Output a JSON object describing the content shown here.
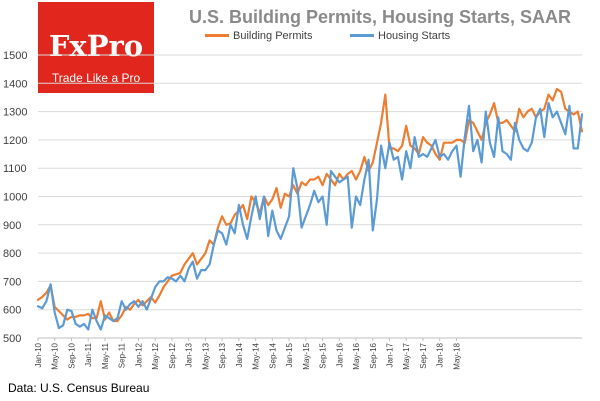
{
  "brand": {
    "name": "FxPro",
    "tagline": "Trade Like a Pro"
  },
  "source_note": "Data: U.S. Census Bureau",
  "colors": {
    "permits": "#ed7d31",
    "starts": "#5b9bd5",
    "grid": "#d9d9d9",
    "brand": "#e0261d"
  },
  "chart_data": {
    "type": "line",
    "title": "U.S. Building Permits, Housing Starts, SAAR",
    "xlabel": "",
    "ylabel": "",
    "ylim": [
      500,
      1500
    ],
    "yticks": [
      500,
      600,
      700,
      800,
      900,
      1000,
      1100,
      1200,
      1300,
      1400,
      1500
    ],
    "grid": true,
    "legend_position": "top",
    "x_tick_labels": [
      "Jan-10",
      "May-10",
      "Sep-10",
      "Jan-11",
      "May-11",
      "Sep-11",
      "Jan-12",
      "May-12",
      "Sep-12",
      "Jan-13",
      "May-13",
      "Sep-13",
      "Jan-14",
      "May-14",
      "Sep-14",
      "Jan-15",
      "May-15",
      "Sep-15",
      "Jan-16",
      "May-16",
      "Sep-16",
      "Jan-17",
      "May-17",
      "Sep-17",
      "Jan-18",
      "May-18"
    ],
    "series": [
      {
        "name": "Building Permits",
        "color": "#ed7d31",
        "values": [
          635,
          645,
          660,
          685,
          610,
          595,
          580,
          565,
          575,
          575,
          580,
          580,
          585,
          570,
          570,
          630,
          565,
          590,
          560,
          560,
          580,
          610,
          600,
          620,
          635,
          615,
          630,
          645,
          625,
          650,
          680,
          700,
          720,
          725,
          730,
          760,
          780,
          800,
          760,
          780,
          800,
          845,
          830,
          890,
          930,
          900,
          905,
          935,
          950,
          970,
          920,
          1000,
          980,
          940,
          1000,
          970,
          990,
          1030,
          960,
          1010,
          1000,
          1040,
          1010,
          1050,
          1040,
          1060,
          1060,
          1070,
          1040,
          1080,
          1060,
          1040,
          1080,
          1060,
          1080,
          1090,
          1060,
          1090,
          1140,
          1090,
          1120,
          1190,
          1260,
          1360,
          1170,
          1170,
          1160,
          1180,
          1250,
          1180,
          1170,
          1150,
          1210,
          1190,
          1180,
          1150,
          1130,
          1190,
          1190,
          1190,
          1200,
          1200,
          1190,
          1270,
          1260,
          1230,
          1200,
          1260,
          1290,
          1330,
          1260,
          1260,
          1270,
          1250,
          1230,
          1310,
          1280,
          1300,
          1310,
          1280,
          1300,
          1310,
          1360,
          1340,
          1380,
          1370,
          1310,
          1300,
          1290,
          1300,
          1230
        ]
      },
      {
        "name": "Housing Starts",
        "color": "#5b9bd5",
        "values": [
          612,
          605,
          630,
          690,
          590,
          535,
          545,
          600,
          595,
          550,
          540,
          550,
          530,
          600,
          560,
          530,
          580,
          570,
          560,
          570,
          630,
          600,
          620,
          630,
          610,
          630,
          600,
          640,
          680,
          700,
          700,
          715,
          710,
          700,
          720,
          700,
          745,
          770,
          710,
          740,
          740,
          760,
          830,
          880,
          870,
          830,
          900,
          870,
          970,
          900,
          850,
          930,
          1000,
          920,
          1000,
          860,
          950,
          880,
          850,
          890,
          930,
          1100,
          1030,
          890,
          930,
          970,
          1020,
          980,
          1000,
          900,
          1090,
          1070,
          1050,
          1060,
          1070,
          890,
          1000,
          970,
          1060,
          1130,
          880,
          990,
          1180,
          1100,
          1190,
          1130,
          1140,
          1060,
          1160,
          1100,
          1210,
          1140,
          1150,
          1140,
          1170,
          1200,
          1140,
          1150,
          1130,
          1160,
          1180,
          1070,
          1210,
          1320,
          1160,
          1200,
          1120,
          1300,
          1190,
          1140,
          1280,
          1160,
          1150,
          1130,
          1260,
          1200,
          1170,
          1160,
          1190,
          1280,
          1310,
          1210,
          1330,
          1280,
          1300,
          1260,
          1220,
          1320,
          1170,
          1170,
          1290
        ]
      }
    ]
  }
}
